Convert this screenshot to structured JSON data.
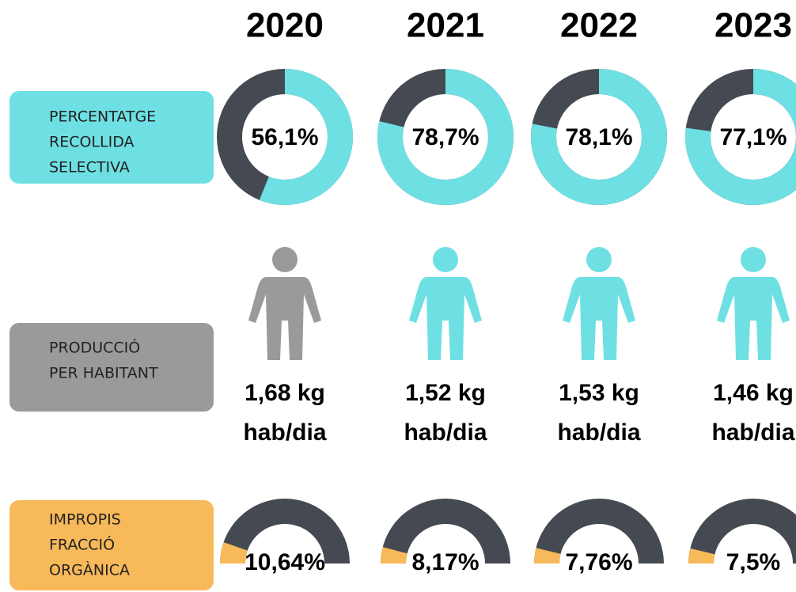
{
  "years": [
    "2020",
    "2021",
    "2022",
    "2023"
  ],
  "selective": {
    "label": [
      "PERCENTATGE",
      "RECOLLIDA",
      "SELECTIVA"
    ],
    "values": [
      56.1,
      78.7,
      78.1,
      77.1
    ],
    "value_labels": [
      "56,1%",
      "78,7%",
      "78,1%",
      "77,1%"
    ],
    "color": "#6ee0e3",
    "rest_color": "#454a52",
    "box_color": "#6ee0e3"
  },
  "production": {
    "label": [
      "PRODUCCIÓ",
      "PER HABITANT"
    ],
    "values": [
      "1,68 kg",
      "1,52 kg",
      "1,53 kg",
      "1,46 kg"
    ],
    "unit": "hab/dia",
    "icon_colors": [
      "#9a9a9a",
      "#6ee0e3",
      "#6ee0e3",
      "#6ee0e3"
    ],
    "box_color": "#9a9a9a"
  },
  "impropis": {
    "label": [
      "IMPROPIS",
      "FRACCIÓ",
      "ORGÀNICA"
    ],
    "values": [
      10.64,
      8.17,
      7.76,
      7.5
    ],
    "value_labels": [
      "10,64%",
      "8,17%",
      "7,76%",
      "7,5%"
    ],
    "color": "#f8b95a",
    "rest_color": "#454a52",
    "box_color": "#f8b95a"
  }
}
